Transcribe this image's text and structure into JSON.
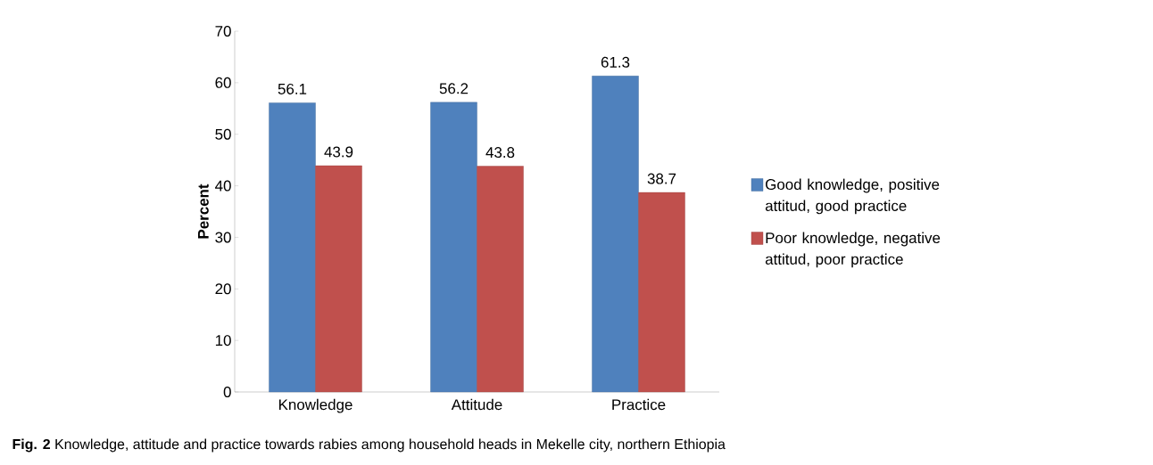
{
  "chart_data": {
    "type": "bar",
    "ylabel": "Percent",
    "categories": [
      "Knowledge",
      "Attitude",
      "Practice"
    ],
    "series": [
      {
        "name": "Good knowledge, positive attitud, good practice",
        "color": "#4f81bd",
        "values": [
          56.1,
          56.2,
          61.3
        ]
      },
      {
        "name": "Poor knowledge, negative attitud, poor practice",
        "color": "#c0504d",
        "values": [
          43.9,
          43.8,
          38.7
        ]
      }
    ],
    "ylim": [
      0,
      70
    ],
    "yticks": [
      0,
      10,
      20,
      30,
      40,
      50,
      60,
      70
    ],
    "data_labels": true,
    "legend": "right",
    "annotations": [
      "**Fig. 2** Knowledge, attitude and practice towards rabies among household heads in Mekelle city, northern Ethiopia"
    ]
  }
}
